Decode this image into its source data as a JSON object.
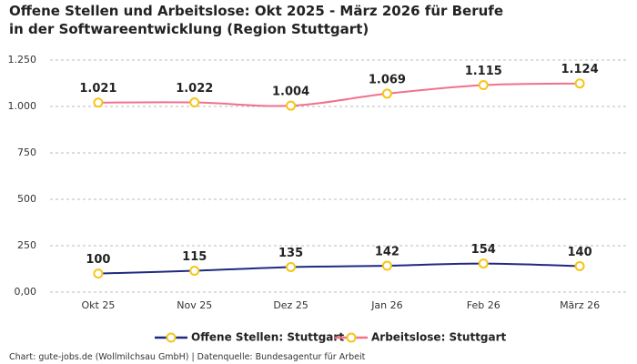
{
  "chart_data": {
    "type": "line",
    "title": "Offene Stellen und Arbeitslose: Okt 2025 - März 2026 für Berufe in der Softwareentwicklung (Region Stuttgart)",
    "source": "Chart: gute-jobs.de (Wollmilchsau GmbH) | Datenquelle: Bundesagentur für Arbeit",
    "categories": [
      "Okt 25",
      "Nov 25",
      "Dez 25",
      "Jan 26",
      "Feb 26",
      "März 26"
    ],
    "series": [
      {
        "name": "Offene Stellen: Stuttgart",
        "color": "#1f2a80",
        "values": [
          100,
          115,
          135,
          142,
          154,
          140
        ]
      },
      {
        "name": "Arbeitslose: Stuttgart",
        "color": "#f2708a",
        "values": [
          1021,
          1022,
          1004,
          1069,
          1115,
          1124
        ],
        "value_labels": [
          "1.021",
          "1.022",
          "1.004",
          "1.069",
          "1.115",
          "1.124"
        ]
      }
    ],
    "marker_color": "#f5c518",
    "ylim": [
      0,
      1250
    ],
    "yticks": [
      {
        "value": 0,
        "label": "0,00"
      },
      250,
      500,
      750,
      {
        "value": 1000,
        "label": "1.000"
      },
      {
        "value": 1250,
        "label": "1.250"
      }
    ],
    "grid": true
  }
}
